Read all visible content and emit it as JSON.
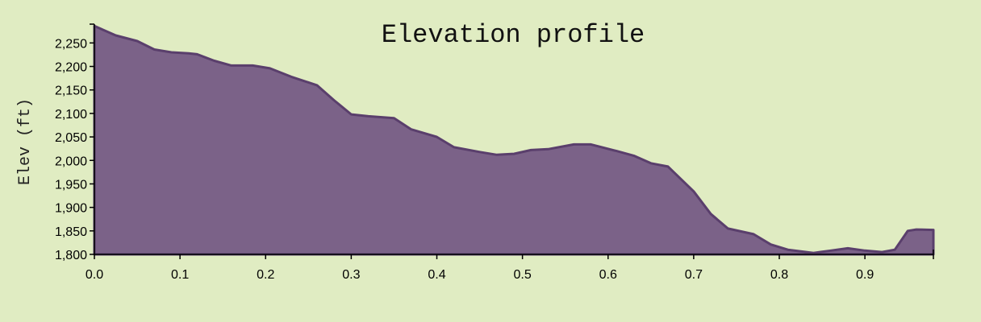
{
  "chart_data": {
    "type": "area",
    "title": "Elevation profile",
    "xlabel": "",
    "ylabel": "Elev (ft)",
    "xlim": [
      0,
      0.98
    ],
    "ylim": [
      1800,
      2290
    ],
    "grid": false,
    "x_ticks": [
      "0.0",
      "0.1",
      "0.2",
      "0.3",
      "0.4",
      "0.5",
      "0.6",
      "0.7",
      "0.8",
      "0.9"
    ],
    "x_tick_values": [
      0.0,
      0.1,
      0.2,
      0.3,
      0.4,
      0.5,
      0.6,
      0.7,
      0.8,
      0.9
    ],
    "y_ticks": [
      "1,800",
      "1,850",
      "1,900",
      "1,950",
      "2,000",
      "2,050",
      "2,100",
      "2,150",
      "2,200",
      "2,250"
    ],
    "y_tick_values": [
      1800,
      1850,
      1900,
      1950,
      2000,
      2050,
      2100,
      2150,
      2200,
      2250
    ],
    "colors": {
      "fill": "#7b6288",
      "stroke": "#5a3f6c",
      "background": "#e0ecc2"
    },
    "x": [
      0.0,
      0.01,
      0.025,
      0.05,
      0.07,
      0.09,
      0.11,
      0.12,
      0.14,
      0.16,
      0.185,
      0.205,
      0.23,
      0.26,
      0.28,
      0.3,
      0.32,
      0.35,
      0.37,
      0.4,
      0.42,
      0.45,
      0.47,
      0.49,
      0.51,
      0.53,
      0.56,
      0.58,
      0.61,
      0.63,
      0.65,
      0.67,
      0.7,
      0.72,
      0.74,
      0.77,
      0.79,
      0.81,
      0.84,
      0.86,
      0.88,
      0.9,
      0.92,
      0.935,
      0.95,
      0.96,
      0.98
    ],
    "values": [
      2286,
      2278,
      2266,
      2254,
      2236,
      2230,
      2228,
      2226,
      2212,
      2202,
      2202,
      2196,
      2178,
      2160,
      2128,
      2098,
      2094,
      2090,
      2066,
      2050,
      2028,
      2018,
      2012,
      2014,
      2022,
      2024,
      2034,
      2034,
      2020,
      2010,
      1994,
      1987,
      1934,
      1886,
      1855,
      1843,
      1821,
      1810,
      1803,
      1808,
      1813,
      1808,
      1805,
      1810,
      1850,
      1853,
      1852
    ]
  }
}
